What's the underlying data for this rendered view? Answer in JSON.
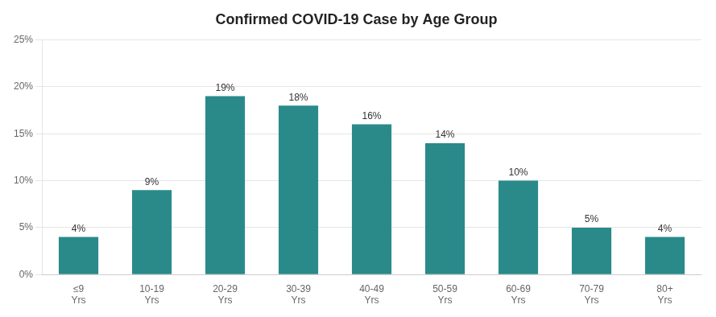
{
  "chart_data": {
    "type": "bar",
    "title": "Confirmed COVID-19 Case by Age Group",
    "categories": [
      "≤9\nYrs",
      "10-19\nYrs",
      "20-29\nYrs",
      "30-39\nYrs",
      "40-49\nYrs",
      "50-59\nYrs",
      "60-69\nYrs",
      "70-79\nYrs",
      "80+\nYrs"
    ],
    "values": [
      4,
      9,
      19,
      18,
      16,
      14,
      10,
      5,
      4
    ],
    "value_labels": [
      "4%",
      "9%",
      "19%",
      "18%",
      "16%",
      "14%",
      "10%",
      "5%",
      "4%"
    ],
    "color": "#2a8a8a",
    "ylim": [
      0,
      25
    ],
    "yticks": [
      {
        "value": 0,
        "label": "0%"
      },
      {
        "value": 5,
        "label": "5%"
      },
      {
        "value": 10,
        "label": "10%"
      },
      {
        "value": 15,
        "label": "15%"
      },
      {
        "value": 20,
        "label": "20%"
      },
      {
        "value": 25,
        "label": "25%"
      }
    ],
    "grid": true,
    "data_labels": true
  }
}
